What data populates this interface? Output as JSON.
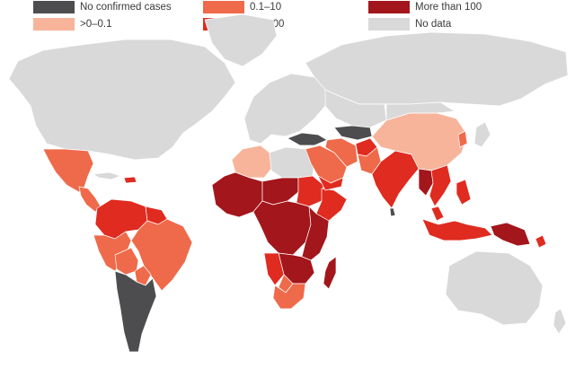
{
  "legend": [
    {
      "key": "none",
      "label": "No confirmed cases",
      "color": "#4d4d4f"
    },
    {
      "key": "lowest",
      "label": ">0–0.1",
      "color": "#f7b49a"
    },
    {
      "key": "low",
      "label": "0.1–10",
      "color": "#ef6a4a"
    },
    {
      "key": "mid",
      "label": "10–100",
      "color": "#e02b20"
    },
    {
      "key": "high",
      "label": "More than 100",
      "color": "#a3161b"
    },
    {
      "key": "nodata",
      "label": "No data",
      "color": "#d9d9d9"
    }
  ],
  "regions": [
    {
      "name": "north-america",
      "category": "nodata"
    },
    {
      "name": "greenland",
      "category": "nodata"
    },
    {
      "name": "mexico",
      "category": "low"
    },
    {
      "name": "central-america",
      "category": "low"
    },
    {
      "name": "cuba",
      "category": "nodata"
    },
    {
      "name": "hispaniola",
      "category": "mid"
    },
    {
      "name": "northern-south-america",
      "category": "mid"
    },
    {
      "name": "guianas",
      "category": "mid"
    },
    {
      "name": "brazil",
      "category": "low"
    },
    {
      "name": "peru",
      "category": "low"
    },
    {
      "name": "bolivia",
      "category": "low"
    },
    {
      "name": "paraguay",
      "category": "low"
    },
    {
      "name": "argentina-chile",
      "category": "none"
    },
    {
      "name": "europe",
      "category": "nodata"
    },
    {
      "name": "russia",
      "category": "nodata"
    },
    {
      "name": "algeria",
      "category": "lowest"
    },
    {
      "name": "north-africa",
      "category": "nodata"
    },
    {
      "name": "west-africa",
      "category": "high"
    },
    {
      "name": "sahel",
      "category": "high"
    },
    {
      "name": "sudan",
      "category": "mid"
    },
    {
      "name": "horn-of-africa",
      "category": "mid"
    },
    {
      "name": "central-africa",
      "category": "high"
    },
    {
      "name": "east-africa",
      "category": "high"
    },
    {
      "name": "southern-africa",
      "category": "high"
    },
    {
      "name": "namibia",
      "category": "mid"
    },
    {
      "name": "botswana",
      "category": "low"
    },
    {
      "name": "south-africa",
      "category": "low"
    },
    {
      "name": "madagascar",
      "category": "high"
    },
    {
      "name": "turkey-caucasus",
      "category": "none"
    },
    {
      "name": "arabia",
      "category": "low"
    },
    {
      "name": "yemen",
      "category": "mid"
    },
    {
      "name": "iran",
      "category": "low"
    },
    {
      "name": "central-asia",
      "category": "nodata"
    },
    {
      "name": "tajikistan-region",
      "category": "none"
    },
    {
      "name": "afghanistan",
      "category": "mid"
    },
    {
      "name": "pakistan",
      "category": "low"
    },
    {
      "name": "india",
      "category": "mid"
    },
    {
      "name": "sri-lanka",
      "category": "none"
    },
    {
      "name": "china",
      "category": "lowest"
    },
    {
      "name": "mongolia",
      "category": "nodata"
    },
    {
      "name": "korea",
      "category": "low"
    },
    {
      "name": "japan",
      "category": "nodata"
    },
    {
      "name": "myanmar",
      "category": "high"
    },
    {
      "name": "southeast-asia",
      "category": "mid"
    },
    {
      "name": "malaysia",
      "category": "mid"
    },
    {
      "name": "philippines",
      "category": "mid"
    },
    {
      "name": "indonesia",
      "category": "mid"
    },
    {
      "name": "papua",
      "category": "high"
    },
    {
      "name": "solomon-vanuatu",
      "category": "mid"
    },
    {
      "name": "australia",
      "category": "nodata"
    },
    {
      "name": "new-zealand",
      "category": "nodata"
    }
  ]
}
